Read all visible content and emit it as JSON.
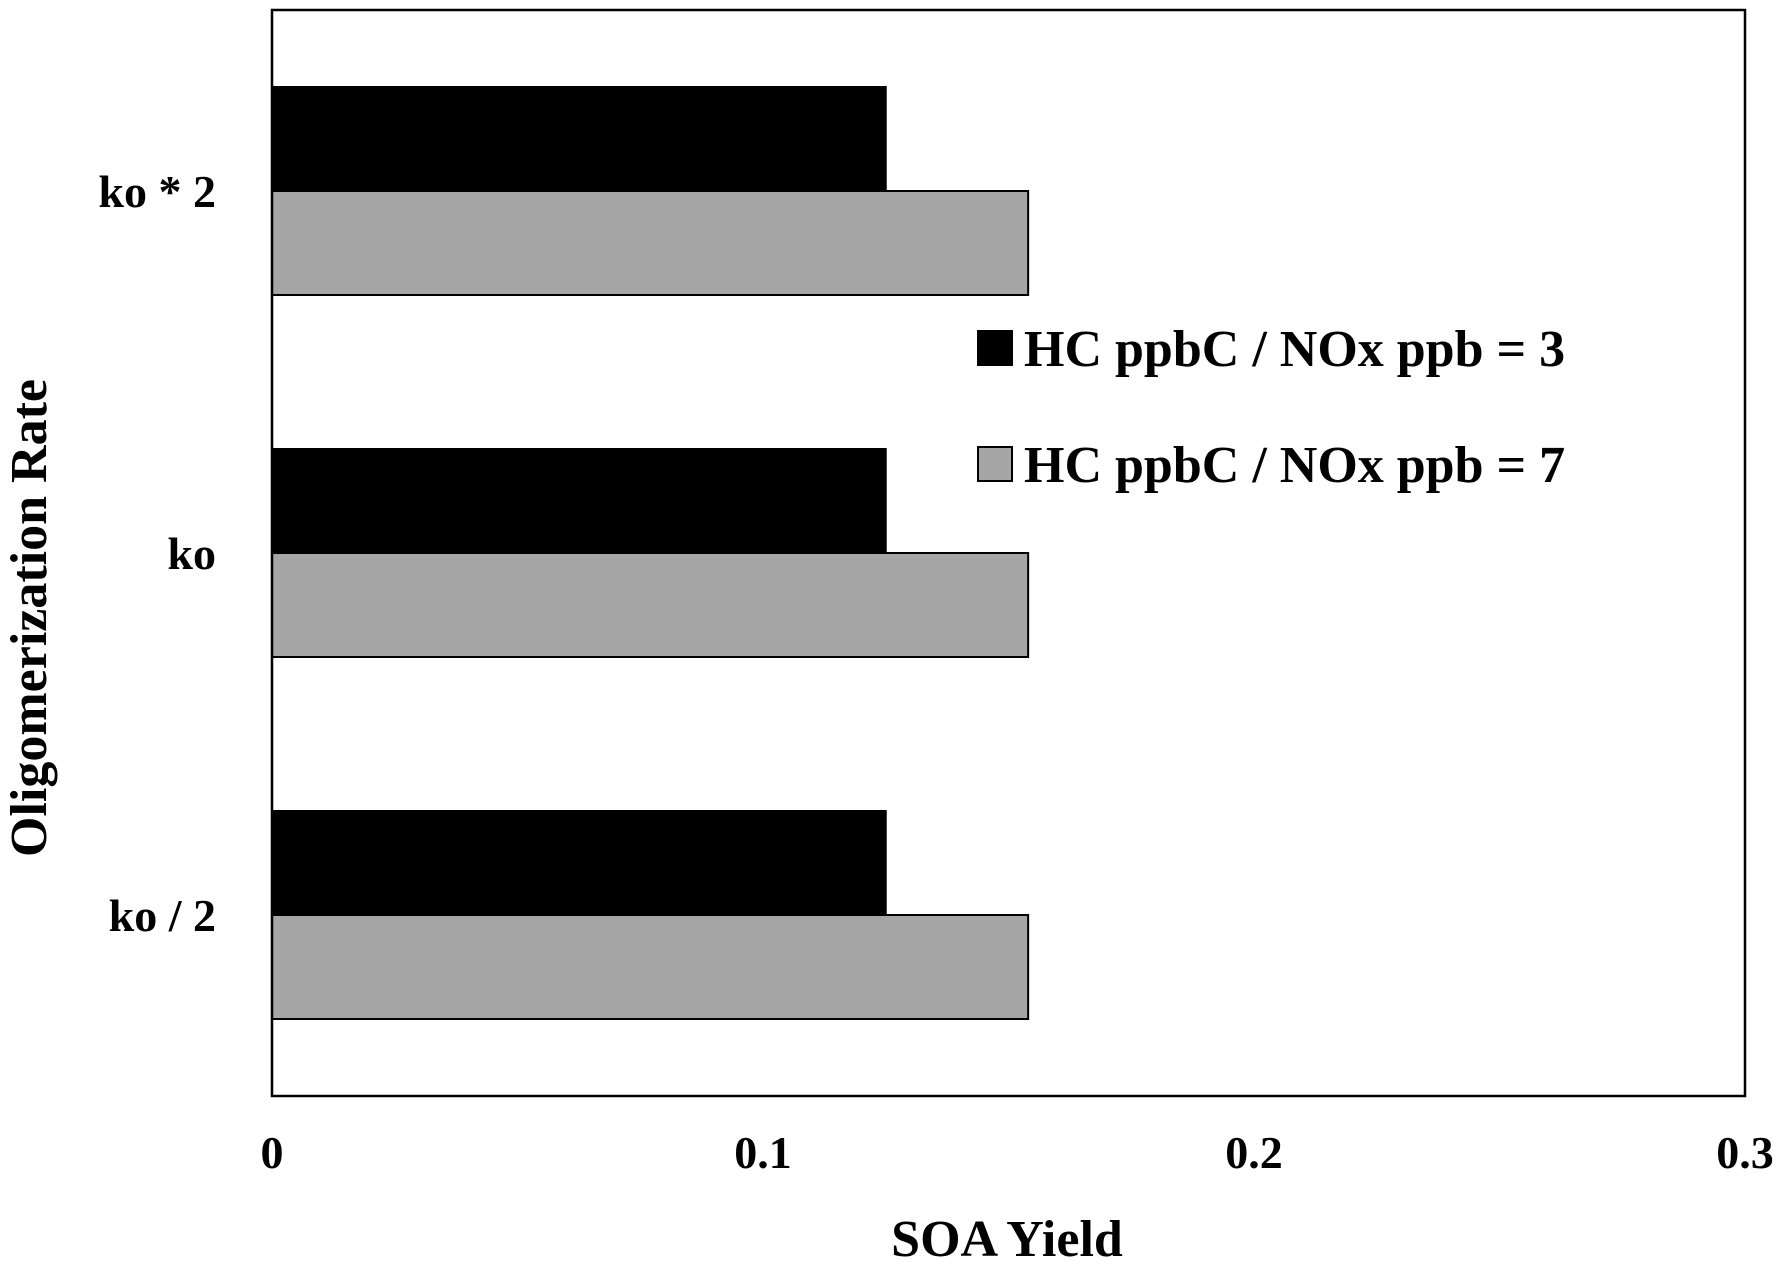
{
  "chart_data": {
    "type": "bar",
    "orientation": "horizontal",
    "categories": [
      "ko / 2",
      "ko",
      "ko * 2"
    ],
    "series": [
      {
        "name": "HC ppbC / NOx ppb = 3",
        "values": [
          0.125,
          0.125,
          0.125
        ],
        "color": "#000000"
      },
      {
        "name": "HC ppbC / NOx ppb = 7",
        "values": [
          0.154,
          0.154,
          0.154
        ],
        "color": "#a6a6a6"
      }
    ],
    "xlabel": "SOA Yield",
    "ylabel": "Oligomerization Rate",
    "xlim": [
      0,
      0.3
    ],
    "xticks": [
      "0",
      "0.1",
      "0.2",
      "0.3"
    ],
    "grid": false,
    "legend_position": "right-middle"
  }
}
